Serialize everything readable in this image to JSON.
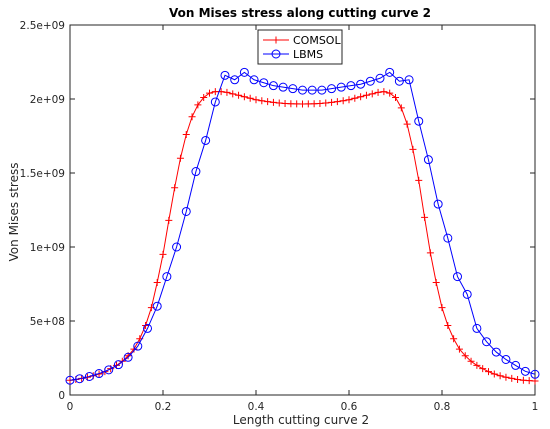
{
  "chart_data": {
    "type": "line",
    "title": "Von Mises stress along cutting curve 2",
    "xlabel": "Length cutting curve 2",
    "ylabel": "Von Mises stress",
    "xlim": [
      0,
      1
    ],
    "ylim": [
      0,
      2500000000
    ],
    "xticks": [
      0,
      0.2,
      0.4,
      0.6,
      0.8,
      1
    ],
    "xtick_labels": [
      "0",
      "0.2",
      "0.4",
      "0.6",
      "0.8",
      "1"
    ],
    "yticks": [
      0,
      500000000,
      1000000000,
      1500000000,
      2000000000,
      2500000000
    ],
    "ytick_labels": [
      "0",
      "5e+08",
      "1e+09",
      "1.5e+09",
      "2e+09",
      "2.5e+09"
    ],
    "grid": false,
    "legend_position": "top-center",
    "series": [
      {
        "name": "COMSOL",
        "color": "#ff0000",
        "marker": "plus",
        "x": [
          0,
          0.0125,
          0.025,
          0.0375,
          0.05,
          0.0625,
          0.075,
          0.0875,
          0.1,
          0.1125,
          0.125,
          0.1375,
          0.15,
          0.1625,
          0.175,
          0.1875,
          0.2,
          0.2125,
          0.225,
          0.2375,
          0.25,
          0.2625,
          0.275,
          0.2875,
          0.3,
          0.3125,
          0.325,
          0.3375,
          0.35,
          0.3625,
          0.375,
          0.3875,
          0.4,
          0.4125,
          0.425,
          0.4375,
          0.45,
          0.4625,
          0.475,
          0.4875,
          0.5,
          0.5125,
          0.525,
          0.5375,
          0.55,
          0.5625,
          0.575,
          0.5875,
          0.6,
          0.6125,
          0.625,
          0.6375,
          0.65,
          0.6625,
          0.675,
          0.6875,
          0.7,
          0.7125,
          0.725,
          0.7375,
          0.75,
          0.7625,
          0.775,
          0.7875,
          0.8,
          0.8125,
          0.825,
          0.8375,
          0.85,
          0.8625,
          0.875,
          0.8875,
          0.9,
          0.9125,
          0.925,
          0.9375,
          0.95,
          0.9625,
          0.975,
          0.9875,
          1
        ],
        "values": [
          100000000,
          105000000,
          112000000,
          120000000,
          130000000,
          142000000,
          158000000,
          178000000,
          200000000,
          228000000,
          265000000,
          310000000,
          380000000,
          470000000,
          590000000,
          760000000,
          950000000,
          1180000000,
          1400000000,
          1600000000,
          1760000000,
          1880000000,
          1960000000,
          2010000000,
          2040000000,
          2050000000,
          2050000000,
          2045000000,
          2035000000,
          2025000000,
          2015000000,
          2005000000,
          1995000000,
          1988000000,
          1982000000,
          1977000000,
          1973000000,
          1970000000,
          1968000000,
          1967000000,
          1966000000,
          1967000000,
          1968000000,
          1970000000,
          1973000000,
          1977000000,
          1982000000,
          1988000000,
          1995000000,
          2005000000,
          2015000000,
          2025000000,
          2035000000,
          2045000000,
          2050000000,
          2040000000,
          2010000000,
          1940000000,
          1830000000,
          1660000000,
          1450000000,
          1200000000,
          960000000,
          760000000,
          590000000,
          470000000,
          380000000,
          310000000,
          265000000,
          228000000,
          200000000,
          178000000,
          158000000,
          142000000,
          130000000,
          120000000,
          112000000,
          105000000,
          100000000,
          97000000,
          95000000
        ]
      },
      {
        "name": "LBMS",
        "color": "#0000ff",
        "marker": "circle",
        "x": [
          0,
          0.0208,
          0.0417,
          0.0625,
          0.0833,
          0.1042,
          0.125,
          0.1458,
          0.1667,
          0.1875,
          0.2083,
          0.2292,
          0.25,
          0.2708,
          0.2917,
          0.3125,
          0.3333,
          0.3542,
          0.375,
          0.3958,
          0.4167,
          0.4375,
          0.4583,
          0.4792,
          0.5,
          0.5208,
          0.5417,
          0.5625,
          0.5833,
          0.6042,
          0.625,
          0.6458,
          0.6667,
          0.6875,
          0.7083,
          0.7292,
          0.75,
          0.7708,
          0.7917,
          0.8125,
          0.8333,
          0.8542,
          0.875,
          0.8958,
          0.9167,
          0.9375,
          0.9583,
          0.9792,
          1
        ],
        "values": [
          100000000,
          110000000,
          125000000,
          145000000,
          170000000,
          205000000,
          255000000,
          330000000,
          450000000,
          600000000,
          800000000,
          1000000000,
          1240000000,
          1510000000,
          1720000000,
          1980000000,
          2160000000,
          2130000000,
          2180000000,
          2130000000,
          2110000000,
          2090000000,
          2080000000,
          2070000000,
          2060000000,
          2060000000,
          2060000000,
          2070000000,
          2080000000,
          2090000000,
          2100000000,
          2120000000,
          2140000000,
          2180000000,
          2120000000,
          2130000000,
          1850000000,
          1590000000,
          1290000000,
          1060000000,
          800000000,
          680000000,
          450000000,
          360000000,
          290000000,
          240000000,
          200000000,
          160000000,
          140000000
        ]
      }
    ]
  }
}
